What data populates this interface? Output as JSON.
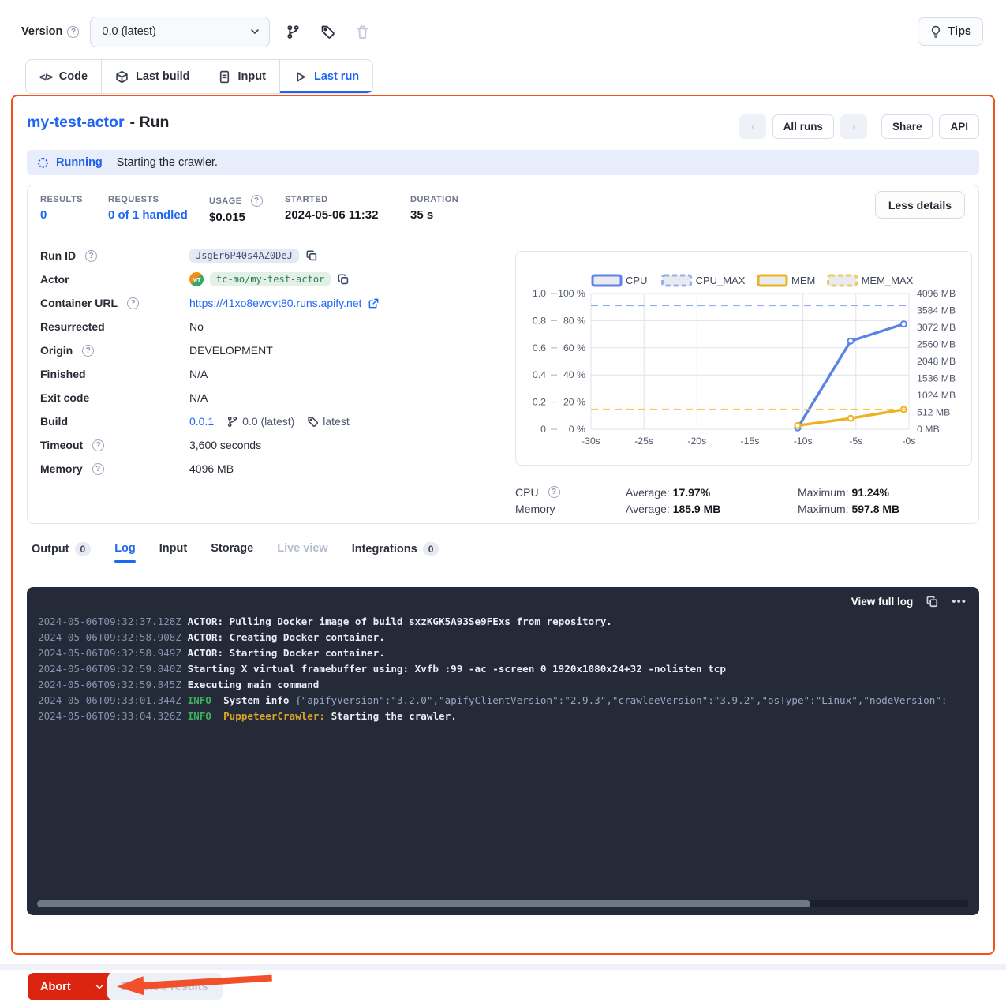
{
  "colors": {
    "accent": "#1f66f2",
    "highlight_border": "#f4511e",
    "abort_red": "#dc2510",
    "status_bg": "#e8edfc",
    "log_bg": "#242a38"
  },
  "toolbar": {
    "version_label": "Version",
    "version_value": "0.0 (latest)",
    "tips_label": "Tips"
  },
  "actor_tabs": [
    {
      "label": "Code",
      "icon": "code-icon",
      "active": false
    },
    {
      "label": "Last build",
      "icon": "box-icon",
      "active": false
    },
    {
      "label": "Input",
      "icon": "document-icon",
      "active": false
    },
    {
      "label": "Last run",
      "icon": "play-icon",
      "active": true
    }
  ],
  "run_header": {
    "actor_name": "my-test-actor",
    "suffix": "- Run",
    "all_runs_label": "All runs",
    "share_label": "Share",
    "api_label": "API"
  },
  "status": {
    "state": "Running",
    "message": "Starting the crawler."
  },
  "stats": [
    {
      "label": "RESULTS",
      "value": "0",
      "link": true,
      "help": false
    },
    {
      "label": "REQUESTS",
      "value": "0 of 1 handled",
      "link": true,
      "help": false
    },
    {
      "label": "USAGE",
      "value": "$0.015",
      "link": false,
      "help": true
    },
    {
      "label": "STARTED",
      "value": "2024-05-06 11:32",
      "link": false,
      "help": false
    },
    {
      "label": "DURATION",
      "value": "35 s",
      "link": false,
      "help": false
    }
  ],
  "less_details_label": "Less details",
  "details": [
    {
      "label": "Run ID",
      "help": true,
      "type": "badge",
      "value": "JsgEr6P40s4AZ0DeJ"
    },
    {
      "label": "Actor",
      "help": false,
      "type": "actor",
      "avatar": "MT",
      "value": "tc-mo/my-test-actor"
    },
    {
      "label": "Container URL",
      "help": true,
      "type": "link",
      "value": "https://41xo8ewcvt80.runs.apify.net"
    },
    {
      "label": "Resurrected",
      "help": false,
      "type": "text",
      "value": "No"
    },
    {
      "label": "Origin",
      "help": true,
      "type": "text",
      "value": "DEVELOPMENT"
    },
    {
      "label": "Finished",
      "help": false,
      "type": "text",
      "value": "N/A"
    },
    {
      "label": "Exit code",
      "help": false,
      "type": "text",
      "value": "N/A"
    },
    {
      "label": "Build",
      "help": false,
      "type": "build",
      "link": "0.0.1",
      "branch": "0.0 (latest)",
      "tag": "latest"
    },
    {
      "label": "Timeout",
      "help": true,
      "type": "text",
      "value": "3,600 seconds"
    },
    {
      "label": "Memory",
      "help": true,
      "type": "text",
      "value": "4096 MB"
    }
  ],
  "chart_data": {
    "type": "line",
    "grid": true,
    "legend_position": "top",
    "x_ticks": [
      "-30s",
      "-25s",
      "-20s",
      "-15s",
      "-10s",
      "-5s",
      "-0s"
    ],
    "x_range": [
      -30,
      0
    ],
    "y_left_ratio_ticks": [
      "1.0",
      "0.8",
      "0.6",
      "0.4",
      "0.2",
      "0"
    ],
    "y_left_pct_ticks": [
      "100 %",
      "80 %",
      "60 %",
      "40 %",
      "20 %",
      "0 %"
    ],
    "y_right_mb_ticks": [
      "4096 MB",
      "3584 MB",
      "3072 MB",
      "2560 MB",
      "2048 MB",
      "1536 MB",
      "1024 MB",
      "512 MB",
      "0 MB"
    ],
    "ylim_pct": [
      0,
      100
    ],
    "ylim_mb": [
      0,
      4096
    ],
    "series": [
      {
        "name": "CPU",
        "unit": "pct",
        "style": "solid",
        "color": "#5b82e8",
        "points": [
          [
            -10.5,
            1
          ],
          [
            -5.5,
            65
          ],
          [
            -0.5,
            77.5
          ]
        ]
      },
      {
        "name": "CPU_MAX",
        "unit": "pct",
        "style": "dashed",
        "color": "#93aff0",
        "constant": 91.24
      },
      {
        "name": "MEM",
        "unit": "mb",
        "style": "solid",
        "color": "#ecb31e",
        "points": [
          [
            -10.5,
            110
          ],
          [
            -5.5,
            330
          ],
          [
            -0.5,
            597.8
          ]
        ]
      },
      {
        "name": "MEM_MAX",
        "unit": "mb",
        "style": "dashed",
        "color": "#f2c85f",
        "constant": 597.8
      }
    ]
  },
  "usage_summary": [
    {
      "label": "CPU",
      "help": true,
      "avg_label": "Average:",
      "avg_value": "17.97%",
      "max_label": "Maximum:",
      "max_value": "91.24%"
    },
    {
      "label": "Memory",
      "help": false,
      "avg_label": "Average:",
      "avg_value": "185.9 MB",
      "max_label": "Maximum:",
      "max_value": "597.8 MB"
    }
  ],
  "run_tabs": [
    {
      "label": "Output",
      "badge": "0",
      "active": false,
      "disabled": false
    },
    {
      "label": "Log",
      "badge": null,
      "active": true,
      "disabled": false
    },
    {
      "label": "Input",
      "badge": null,
      "active": false,
      "disabled": false
    },
    {
      "label": "Storage",
      "badge": null,
      "active": false,
      "disabled": false
    },
    {
      "label": "Live view",
      "badge": null,
      "active": false,
      "disabled": true
    },
    {
      "label": "Integrations",
      "badge": "0",
      "active": false,
      "disabled": false
    }
  ],
  "log": {
    "view_full_label": "View full log",
    "lines": [
      {
        "ts": "2024-05-06T09:32:37.128Z",
        "segments": [
          {
            "cls": "msg",
            "text": "ACTOR: Pulling Docker image of build sxzKGK5A93Se9FExs from repository."
          }
        ]
      },
      {
        "ts": "2024-05-06T09:32:58.908Z",
        "segments": [
          {
            "cls": "msg",
            "text": "ACTOR: Creating Docker container."
          }
        ]
      },
      {
        "ts": "2024-05-06T09:32:58.949Z",
        "segments": [
          {
            "cls": "msg",
            "text": "ACTOR: Starting Docker container."
          }
        ]
      },
      {
        "ts": "2024-05-06T09:32:59.840Z",
        "segments": [
          {
            "cls": "msg",
            "text": "Starting X virtual framebuffer using: Xvfb :99 -ac -screen 0 1920x1080x24+32 -nolisten tcp"
          }
        ]
      },
      {
        "ts": "2024-05-06T09:32:59.845Z",
        "segments": [
          {
            "cls": "msg",
            "text": "Executing main command"
          }
        ]
      },
      {
        "ts": "2024-05-06T09:33:01.344Z",
        "segments": [
          {
            "cls": "info",
            "text": "INFO"
          },
          {
            "cls": "msg",
            "text": "  System info "
          },
          {
            "cls": "json",
            "text": "{\"apifyVersion\":\"3.2.0\",\"apifyClientVersion\":\"2.9.3\",\"crawleeVersion\":\"3.9.2\",\"osType\":\"Linux\",\"nodeVersion\":"
          }
        ]
      },
      {
        "ts": "2024-05-06T09:33:04.326Z",
        "segments": [
          {
            "cls": "info",
            "text": "INFO"
          },
          {
            "cls": "msg",
            "text": "  "
          },
          {
            "cls": "crawler",
            "text": "PuppeteerCrawler:"
          },
          {
            "cls": "msg",
            "text": " Starting the crawler."
          }
        ]
      }
    ]
  },
  "footer": {
    "abort_label": "Abort",
    "export_label": "Export 0 results"
  }
}
